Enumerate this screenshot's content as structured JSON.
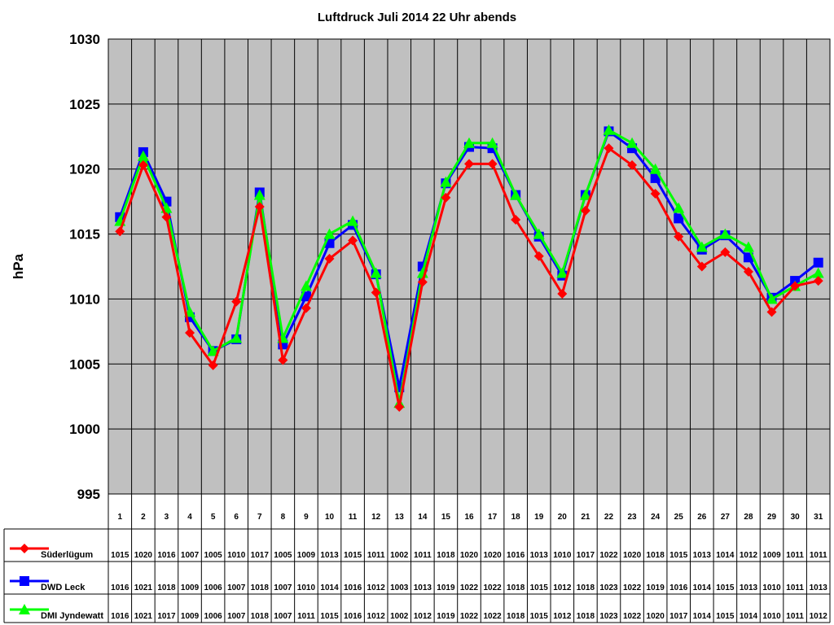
{
  "chart_data": {
    "type": "line",
    "title": "Luftdruck Juli 2014 22 Uhr abends",
    "ylabel": "hPa",
    "xlabel": "",
    "ylim": [
      995,
      1030
    ],
    "ytick_step": 5,
    "yticks": [
      "1030",
      "1025",
      "1020",
      "1015",
      "1010",
      "1005",
      "1000",
      "995"
    ],
    "grid": true,
    "plot_background": "#c0c0c0",
    "categories": [
      "1",
      "2",
      "3",
      "4",
      "5",
      "6",
      "7",
      "8",
      "9",
      "10",
      "11",
      "12",
      "13",
      "14",
      "15",
      "16",
      "17",
      "18",
      "19",
      "20",
      "21",
      "22",
      "23",
      "24",
      "25",
      "26",
      "27",
      "28",
      "29",
      "30",
      "31"
    ],
    "series": [
      {
        "name": "Süderlügum",
        "color": "#ff0000",
        "marker": "diamond",
        "values": [
          1015.2,
          1020.3,
          1016.3,
          1007.4,
          1004.9,
          1009.8,
          1017.1,
          1005.3,
          1009.3,
          1013.1,
          1014.5,
          1010.5,
          1001.7,
          1011.3,
          1017.8,
          1020.4,
          1020.4,
          1016.1,
          1013.3,
          1010.4,
          1016.8,
          1021.6,
          1020.3,
          1018.1,
          1014.8,
          1012.5,
          1013.6,
          1012.1,
          1009.0,
          1011.0,
          1011.4
        ],
        "table": [
          "1015",
          "1020",
          "1016",
          "1007",
          "1005",
          "1010",
          "1017",
          "1005",
          "1009",
          "1013",
          "1015",
          "1011",
          "1002",
          "1011",
          "1018",
          "1020",
          "1020",
          "1016",
          "1013",
          "1010",
          "1017",
          "1022",
          "1020",
          "1018",
          "1015",
          "1013",
          "1014",
          "1012",
          "1009",
          "1011",
          "1011"
        ]
      },
      {
        "name": "DWD Leck",
        "color": "#0000ff",
        "marker": "square",
        "values": [
          1016.3,
          1021.3,
          1017.5,
          1008.6,
          1006.0,
          1006.9,
          1018.2,
          1006.5,
          1010.2,
          1014.3,
          1015.7,
          1011.9,
          1003.2,
          1012.5,
          1018.9,
          1021.7,
          1021.6,
          1018.0,
          1014.8,
          1011.8,
          1018.0,
          1022.9,
          1021.6,
          1019.3,
          1016.2,
          1013.8,
          1014.9,
          1013.2,
          1010.1,
          1011.4,
          1012.8
        ],
        "table": [
          "1016",
          "1021",
          "1018",
          "1009",
          "1006",
          "1007",
          "1018",
          "1007",
          "1010",
          "1014",
          "1016",
          "1012",
          "1003",
          "1013",
          "1019",
          "1022",
          "1022",
          "1018",
          "1015",
          "1012",
          "1018",
          "1023",
          "1022",
          "1019",
          "1016",
          "1014",
          "1015",
          "1013",
          "1010",
          "1011",
          "1013"
        ]
      },
      {
        "name": "DMI Jyndewatt",
        "color": "#00ff00",
        "marker": "triangle",
        "values": [
          1016.0,
          1021.0,
          1017.0,
          1009.0,
          1006.0,
          1007.0,
          1018.0,
          1007.0,
          1011.0,
          1015.0,
          1016.0,
          1012.0,
          1002.0,
          1012.0,
          1019.0,
          1022.0,
          1022.0,
          1018.0,
          1015.0,
          1012.0,
          1018.0,
          1023.0,
          1022.0,
          1020.0,
          1017.0,
          1014.0,
          1015.0,
          1014.0,
          1010.0,
          1011.0,
          1012.0
        ],
        "table": [
          "1016",
          "1021",
          "1017",
          "1009",
          "1006",
          "1007",
          "1018",
          "1007",
          "1011",
          "1015",
          "1016",
          "1012",
          "1002",
          "1012",
          "1019",
          "1022",
          "1022",
          "1018",
          "1015",
          "1012",
          "1018",
          "1023",
          "1022",
          "1020",
          "1017",
          "1014",
          "1015",
          "1014",
          "1010",
          "1011",
          "1012"
        ]
      }
    ]
  }
}
